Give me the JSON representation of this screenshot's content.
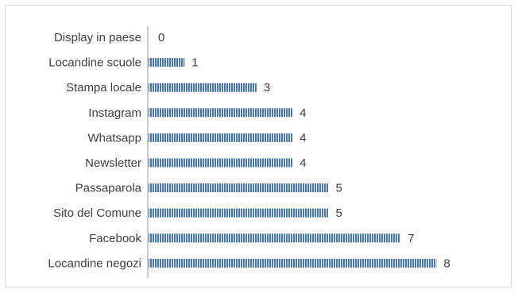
{
  "chart_data": {
    "type": "bar",
    "orientation": "horizontal",
    "categories": [
      "Display in paese",
      "Locandine scuole",
      "Stampa locale",
      "Instagram",
      "Whatsapp",
      "Newsletter",
      "Passaparola",
      "Sito del Comune",
      "Facebook",
      "Locandine negozi"
    ],
    "values": [
      0,
      1,
      3,
      4,
      4,
      4,
      5,
      5,
      7,
      8
    ],
    "title": "",
    "xlabel": "",
    "ylabel": "",
    "xlim": [
      0,
      8
    ],
    "grid": false,
    "legend": "none",
    "data_labels": true,
    "bar_color": "#4472c4",
    "bar_stripe_color": "#ffffff",
    "label_color": "#404040",
    "axis_color": "#bfbfbf",
    "border_color": "#d9d9d9"
  }
}
